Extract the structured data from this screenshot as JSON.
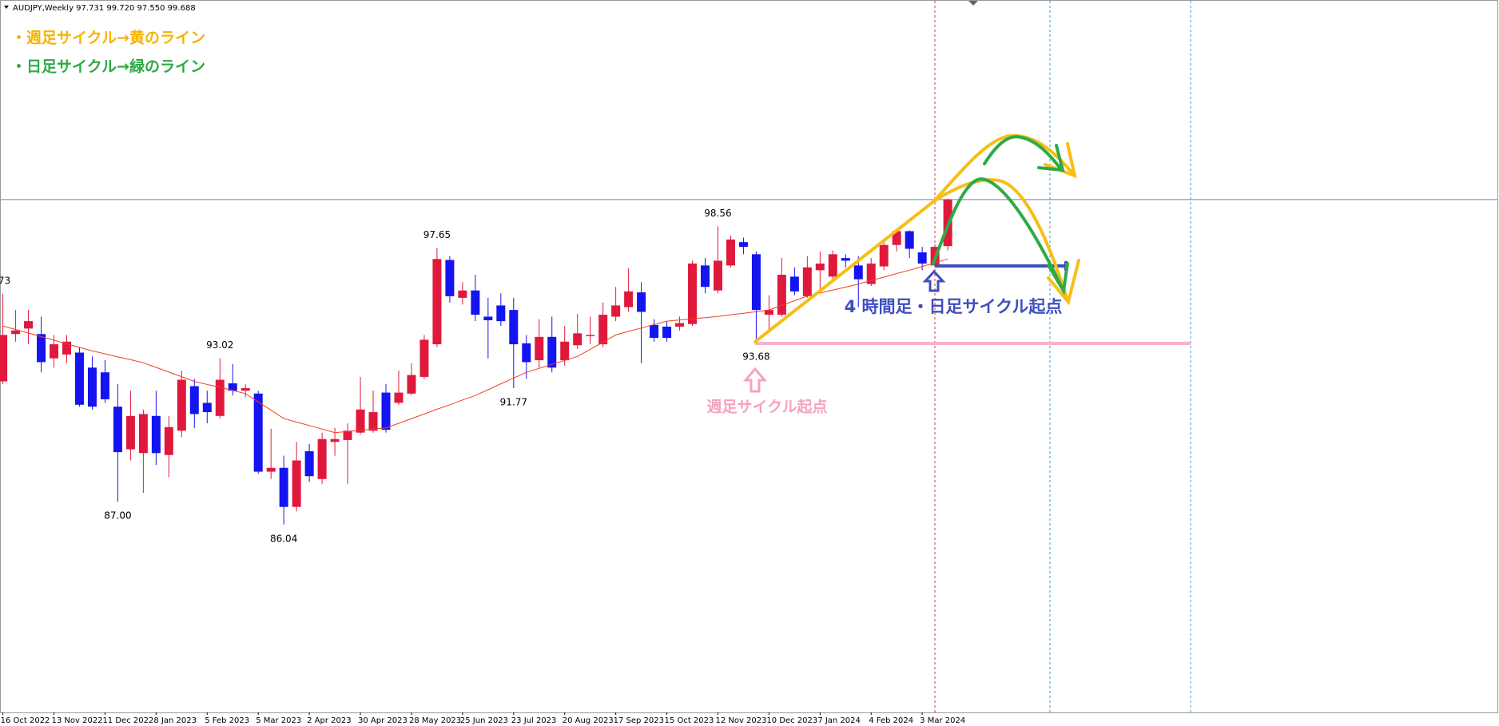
{
  "chart_data": {
    "type": "candlestick",
    "title": "AUDJPY,Weekly  97.731 99.720 97.550 99.688",
    "categories": [
      "16 Oct 2022",
      null,
      null,
      null,
      "13 Nov 2022",
      null,
      null,
      null,
      "11 Dec 2022",
      null,
      null,
      null,
      "8 Jan 2023",
      null,
      null,
      null,
      "5 Feb 2023",
      null,
      null,
      null,
      "5 Mar 2023",
      null,
      null,
      null,
      "2 Apr 2023",
      null,
      null,
      null,
      "30 Apr 2023",
      null,
      null,
      null,
      "28 May 2023",
      null,
      null,
      null,
      "25 Jun 2023",
      null,
      null,
      null,
      "23 Jul 2023",
      null,
      null,
      null,
      "20 Aug 2023",
      null,
      null,
      null,
      "17 Sep 2023",
      null,
      null,
      null,
      "15 Oct 2023",
      null,
      null,
      null,
      "12 Nov 2023",
      null,
      null,
      null,
      "10 Dec 2023",
      null,
      null,
      null,
      "7 Jan 2024",
      null,
      null,
      null,
      "4 Feb 2024",
      null,
      null,
      null,
      "3 Mar 2024",
      null,
      null
    ],
    "open": [
      92.05,
      94.04,
      94.27,
      94.04,
      93.02,
      93.18,
      93.26,
      92.63,
      92.43,
      90.99,
      89.2,
      89.04,
      90.6,
      88.96,
      89.98,
      91.85,
      91.15,
      90.6,
      91.97,
      91.66,
      91.54,
      88.26,
      88.42,
      86.78,
      89.12,
      87.95,
      89.51,
      89.59,
      89.9,
      89.98,
      91.58,
      91.15,
      91.54,
      92.24,
      93.61,
      97.15,
      95.56,
      95.87,
      94.77,
      95.24,
      95.05,
      93.65,
      92.94,
      93.92,
      92.94,
      93.57,
      93.96,
      93.61,
      94.77,
      95.17,
      95.79,
      94.42,
      94.35,
      94.35,
      94.46,
      96.92,
      95.87,
      96.92,
      97.9,
      97.39,
      94.85,
      94.85,
      96.45,
      95.63,
      96.72,
      96.45,
      97.23,
      96.92,
      96.14,
      96.88,
      97.78,
      98.36,
      97.47,
      96.92,
      97.731
    ],
    "high": [
      95.73,
      95.05,
      95.05,
      94.77,
      94.0,
      94.0,
      93.49,
      93.1,
      92.95,
      91.93,
      91.66,
      90.87,
      91.66,
      90.6,
      92.51,
      92.16,
      91.66,
      93.02,
      92.78,
      91.93,
      91.66,
      90.06,
      88.93,
      89.51,
      89.43,
      89.9,
      90.1,
      90.29,
      92.24,
      91.66,
      91.93,
      92.51,
      92.82,
      94.0,
      97.65,
      97.31,
      96.22,
      96.53,
      95.56,
      95.75,
      95.56,
      94.0,
      94.66,
      94.77,
      94.38,
      94.89,
      94.77,
      95.36,
      96.02,
      96.8,
      96.22,
      94.66,
      94.58,
      94.77,
      97.12,
      97.23,
      98.56,
      98.17,
      98.09,
      97.51,
      95.67,
      97.23,
      96.84,
      97.31,
      97.51,
      97.55,
      97.39,
      97.31,
      97.23,
      98.01,
      98.45,
      98.4,
      97.7,
      97.8,
      99.72
    ],
    "low": [
      91.93,
      93.72,
      93.61,
      92.43,
      92.63,
      92.82,
      90.99,
      90.87,
      91.15,
      87.0,
      88.73,
      87.37,
      88.54,
      88.03,
      89.71,
      90.1,
      90.29,
      90.49,
      91.46,
      91.38,
      88.18,
      87.95,
      86.04,
      86.59,
      87.83,
      87.75,
      88.93,
      87.75,
      89.82,
      89.9,
      89.9,
      91.07,
      91.46,
      92.16,
      93.49,
      95.36,
      95.28,
      94.58,
      93.02,
      94.38,
      91.77,
      92.16,
      92.63,
      92.43,
      92.71,
      93.41,
      93.61,
      93.49,
      94.58,
      94.97,
      92.82,
      93.72,
      93.72,
      94.19,
      94.38,
      95.75,
      95.75,
      96.84,
      97.39,
      93.68,
      94.19,
      94.77,
      95.67,
      95.56,
      95.83,
      96.34,
      96.84,
      95.17,
      96.06,
      96.72,
      97.51,
      97.23,
      96.72,
      96.84,
      97.55
    ],
    "close": [
      94.0,
      94.19,
      94.58,
      92.86,
      93.61,
      93.72,
      91.07,
      90.99,
      91.3,
      89.08,
      90.6,
      90.68,
      89.04,
      90.13,
      92.12,
      90.68,
      90.76,
      92.12,
      91.66,
      91.77,
      88.26,
      88.42,
      86.78,
      88.73,
      88.07,
      89.63,
      89.63,
      89.98,
      90.87,
      90.76,
      90.02,
      91.58,
      92.32,
      93.8,
      97.19,
      95.63,
      95.87,
      94.85,
      94.62,
      94.58,
      93.61,
      92.86,
      93.92,
      92.63,
      93.72,
      94.07,
      94.0,
      94.85,
      95.24,
      95.83,
      94.97,
      93.88,
      93.88,
      94.5,
      97.0,
      96.02,
      97.12,
      98.01,
      97.7,
      95.05,
      95.05,
      96.53,
      95.83,
      96.84,
      97.0,
      97.39,
      97.12,
      96.34,
      97.0,
      97.78,
      98.36,
      97.62,
      97.0,
      97.7,
      99.688
    ],
    "high_labels": [
      ".73",
      null,
      null,
      null,
      null,
      null,
      null,
      null,
      null,
      null,
      null,
      null,
      null,
      null,
      null,
      null,
      null,
      "93.02",
      null,
      null,
      null,
      null,
      null,
      null,
      null,
      null,
      null,
      null,
      null,
      null,
      null,
      null,
      null,
      null,
      "97.65",
      null,
      null,
      null,
      null,
      null,
      null,
      null,
      null,
      null,
      null,
      null,
      null,
      null,
      null,
      null,
      null,
      null,
      null,
      null,
      null,
      null,
      "98.56",
      null,
      null,
      null,
      null,
      null,
      null,
      null,
      null,
      null,
      null,
      null,
      null,
      null,
      null,
      null,
      null,
      null,
      null
    ],
    "low_labels": [
      null,
      null,
      null,
      null,
      null,
      null,
      null,
      null,
      null,
      "87.00",
      null,
      null,
      null,
      null,
      null,
      null,
      null,
      null,
      null,
      null,
      null,
      null,
      "86.04",
      null,
      null,
      null,
      null,
      null,
      null,
      null,
      null,
      null,
      null,
      null,
      null,
      null,
      null,
      null,
      null,
      null,
      "91.77",
      null,
      null,
      null,
      null,
      null,
      null,
      null,
      null,
      null,
      null,
      null,
      null,
      null,
      null,
      null,
      null,
      null,
      null,
      "93.68",
      null,
      null,
      null,
      null,
      null,
      null,
      null,
      null,
      null,
      null,
      null,
      null,
      null,
      null,
      null
    ],
    "ma_values": [
      94.38,
      94.23,
      94.08,
      93.93,
      93.78,
      93.63,
      93.48,
      93.33,
      93.21,
      93.08,
      92.96,
      92.83,
      92.64,
      92.44,
      92.25,
      92.05,
      91.92,
      91.8,
      91.67,
      91.54,
      91.19,
      90.84,
      90.49,
      90.34,
      90.2,
      90.05,
      89.9,
      89.95,
      90.0,
      90.05,
      90.1,
      90.29,
      90.49,
      90.68,
      90.88,
      91.07,
      91.27,
      91.46,
      91.7,
      91.95,
      92.19,
      92.43,
      92.6,
      92.77,
      92.93,
      93.1,
      93.4,
      93.7,
      94.0,
      94.15,
      94.29,
      94.44,
      94.58,
      94.63,
      94.68,
      94.73,
      94.78,
      94.85,
      94.91,
      94.98,
      95.05,
      95.24,
      95.44,
      95.63,
      95.76,
      95.89,
      96.01,
      96.14,
      96.29,
      96.43,
      96.58,
      96.72,
      96.88,
      97.03,
      97.19
    ],
    "ma_color": "#f04020",
    "up_color": "#e0193c",
    "down_color": "#1414f0",
    "price_line_color": "#5a86c8",
    "ylim": [
      78.15,
      108.0
    ],
    "annotations": [
      {
        "text": "・週足サイクル→黄のライン",
        "color": "#f5b400"
      },
      {
        "text": "・日足サイクル→緑のライン",
        "color": "#2eaa46"
      },
      {
        "text": "4 時間足・日足サイクル起点",
        "color": "#3f4fc0"
      },
      {
        "text": "週足サイクル起点",
        "color": "#f4a3bf"
      }
    ]
  }
}
